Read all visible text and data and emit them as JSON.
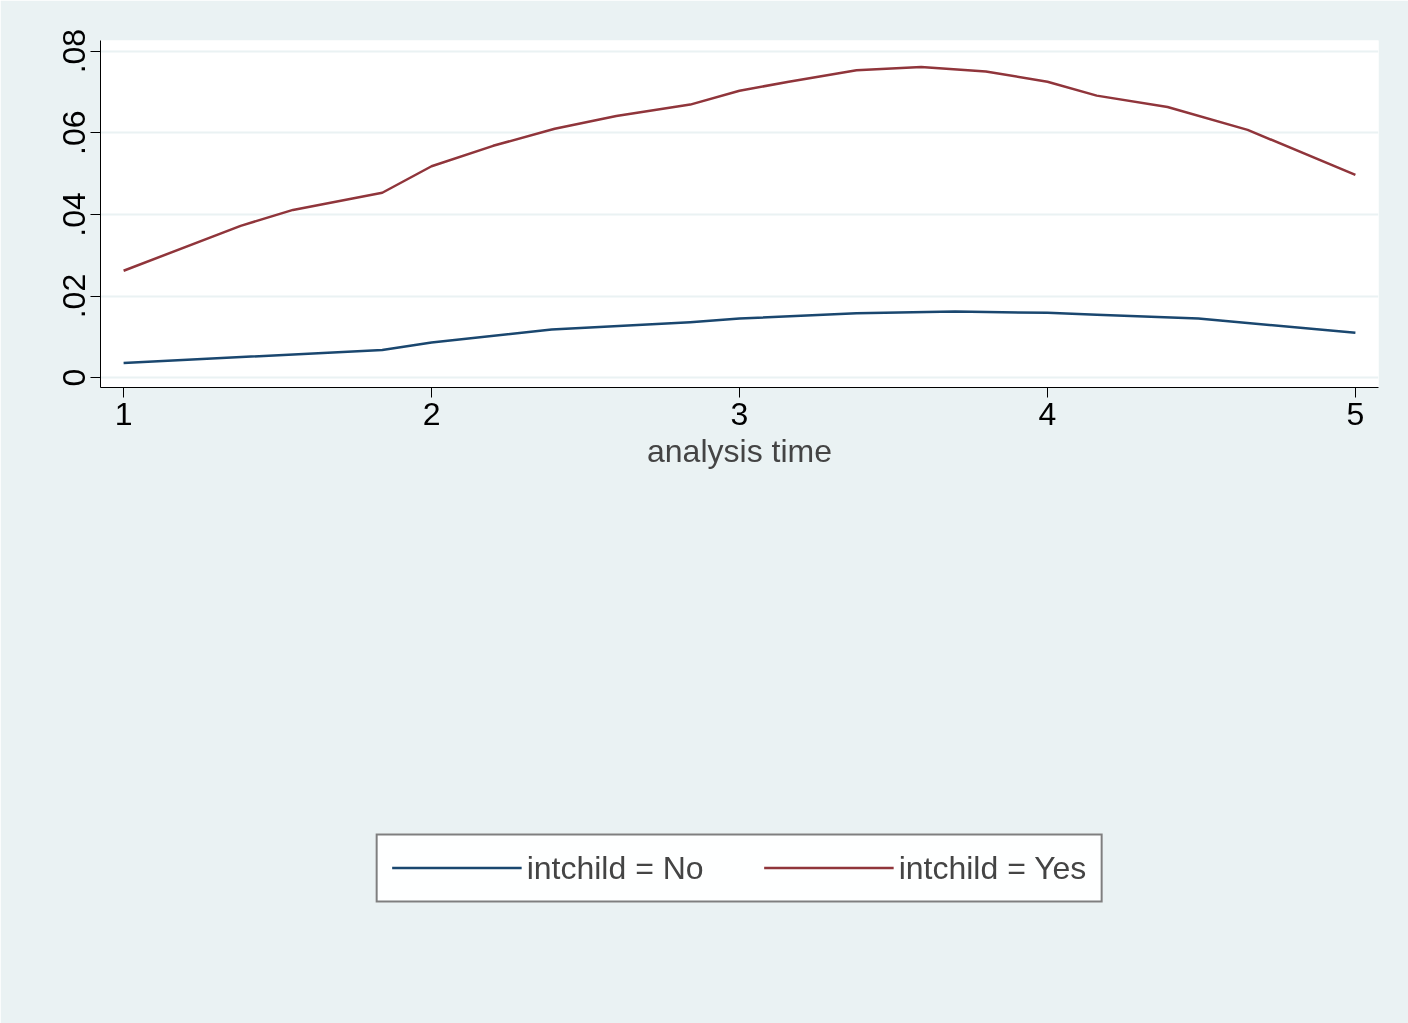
{
  "chart_data": {
    "type": "line",
    "xlabel": "analysis time",
    "xlim": [
      0.925,
      5.075
    ],
    "ylim": [
      -0.0024,
      0.0826
    ],
    "xticks": [
      1,
      2,
      3,
      4,
      5
    ],
    "yticks": [
      {
        "value": 0,
        "label": "0"
      },
      {
        "value": 0.02,
        "label": ".02"
      },
      {
        "value": 0.04,
        "label": ".04"
      },
      {
        "value": 0.06,
        "label": ".06"
      },
      {
        "value": 0.08,
        "label": ".08"
      }
    ],
    "grid": "y",
    "legend": "bottom",
    "line_style": "solid",
    "marker": "none",
    "series": [
      {
        "name": "intchild = No",
        "color": "#1a476f",
        "x": [
          1.0,
          1.84,
          2.0,
          2.39,
          2.84,
          3.0,
          3.38,
          3.7,
          4.0,
          4.16,
          4.49,
          5.0
        ],
        "values": [
          0.0036,
          0.0068,
          0.0086,
          0.0118,
          0.0136,
          0.0145,
          0.0158,
          0.0162,
          0.0159,
          0.0154,
          0.0145,
          0.011
        ]
      },
      {
        "name": "intchild = Yes",
        "color": "#90353b",
        "x": [
          1.0,
          1.38,
          1.55,
          1.84,
          2.0,
          2.2,
          2.4,
          2.6,
          2.84,
          3.0,
          3.16,
          3.38,
          3.59,
          3.8,
          4.0,
          4.16,
          4.39,
          4.65,
          5.0
        ],
        "values": [
          0.0262,
          0.0372,
          0.0411,
          0.0453,
          0.0518,
          0.0568,
          0.061,
          0.0641,
          0.0669,
          0.0703,
          0.0725,
          0.0753,
          0.0761,
          0.075,
          0.0725,
          0.0691,
          0.0663,
          0.0607,
          0.0497
        ]
      }
    ]
  }
}
